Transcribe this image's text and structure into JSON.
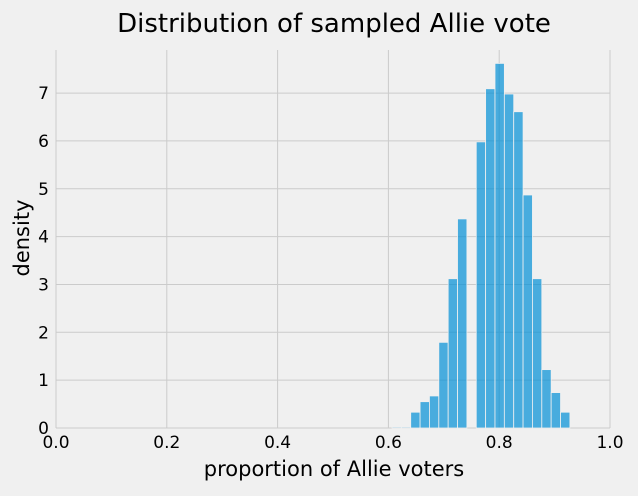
{
  "chart_data": {
    "type": "bar",
    "title": "Distribution of sampled Allie vote",
    "xlabel": "proportion of Allie voters",
    "ylabel": "density",
    "xlim": [
      0.0,
      1.0
    ],
    "ylim": [
      0,
      7.9
    ],
    "grid": true,
    "x_ticks": [
      0.0,
      0.2,
      0.4,
      0.6,
      0.8,
      1.0
    ],
    "x_tick_labels": [
      "0.0",
      "0.2",
      "0.4",
      "0.6",
      "0.8",
      "1.0"
    ],
    "y_ticks": [
      0,
      1,
      2,
      3,
      4,
      5,
      6,
      7
    ],
    "y_tick_labels": [
      "0",
      "1",
      "2",
      "3",
      "4",
      "5",
      "6",
      "7"
    ],
    "bin_width": 0.0169,
    "bins": [
      {
        "x": 0.6065,
        "density": 0.02
      },
      {
        "x": 0.6234,
        "density": 0.02
      },
      {
        "x": 0.6403,
        "density": 0.33
      },
      {
        "x": 0.6572,
        "density": 0.55
      },
      {
        "x": 0.6741,
        "density": 0.67
      },
      {
        "x": 0.691,
        "density": 1.79
      },
      {
        "x": 0.7079,
        "density": 3.12
      },
      {
        "x": 0.7248,
        "density": 4.37
      },
      {
        "x": 0.7417,
        "density": 0.0
      },
      {
        "x": 0.7586,
        "density": 5.98
      },
      {
        "x": 0.7755,
        "density": 7.09
      },
      {
        "x": 0.7924,
        "density": 7.62
      },
      {
        "x": 0.8093,
        "density": 6.98
      },
      {
        "x": 0.8262,
        "density": 6.61
      },
      {
        "x": 0.8431,
        "density": 4.87
      },
      {
        "x": 0.86,
        "density": 3.12
      },
      {
        "x": 0.8769,
        "density": 1.22
      },
      {
        "x": 0.8938,
        "density": 0.74
      },
      {
        "x": 0.9107,
        "density": 0.33
      }
    ],
    "colors": {
      "bar": "#008fd5",
      "background": "#f0f0f0",
      "grid": "#cbcbcb"
    }
  }
}
